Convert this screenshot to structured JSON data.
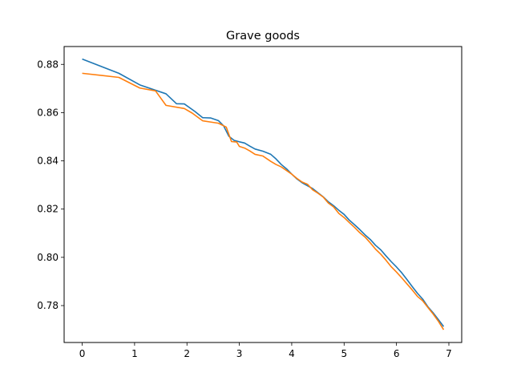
{
  "chart_data": {
    "type": "line",
    "title": "Grave goods",
    "xlabel": "",
    "ylabel": "",
    "xlim": [
      -0.345,
      7.245
    ],
    "ylim": [
      0.7647,
      0.8874
    ],
    "xticks": [
      0,
      1,
      2,
      3,
      4,
      5,
      6,
      7
    ],
    "yticks": [
      0.78,
      0.8,
      0.82,
      0.84,
      0.86,
      0.88
    ],
    "ytick_labels": [
      "0.78",
      "0.80",
      "0.82",
      "0.84",
      "0.86",
      "0.88"
    ],
    "grid": false,
    "legend": "none",
    "series": [
      {
        "color": "#1f77b4",
        "x": [
          0,
          0.7,
          1.1,
          1.6,
          1.8,
          1.95,
          2.15,
          2.3,
          2.45,
          2.6,
          2.7,
          2.8,
          2.9,
          3.0,
          3.1,
          3.2,
          3.3,
          3.45,
          3.6,
          3.7,
          3.8,
          3.9,
          4.0,
          4.1,
          4.2,
          4.3,
          4.4,
          4.5,
          4.6,
          4.7,
          4.8,
          4.9,
          5.0,
          5.1,
          5.2,
          5.3,
          5.4,
          5.5,
          5.6,
          5.7,
          5.8,
          5.9,
          6.0,
          6.1,
          6.2,
          6.3,
          6.4,
          6.5,
          6.6,
          6.7,
          6.8,
          6.9
        ],
        "y": [
          0.8822,
          0.8763,
          0.8715,
          0.8678,
          0.8637,
          0.8636,
          0.8605,
          0.8579,
          0.8578,
          0.8567,
          0.8545,
          0.8502,
          0.8485,
          0.8479,
          0.8474,
          0.8461,
          0.8449,
          0.844,
          0.8427,
          0.8408,
          0.8385,
          0.8367,
          0.8345,
          0.8325,
          0.8309,
          0.8297,
          0.8285,
          0.8268,
          0.8251,
          0.823,
          0.8214,
          0.8195,
          0.8178,
          0.8154,
          0.8135,
          0.8115,
          0.8093,
          0.8074,
          0.805,
          0.8031,
          0.8006,
          0.7982,
          0.796,
          0.7936,
          0.7908,
          0.7879,
          0.7851,
          0.7827,
          0.7795,
          0.777,
          0.7742,
          0.7713
        ]
      },
      {
        "color": "#ff7f0e",
        "x": [
          0,
          0.7,
          1.1,
          1.4,
          1.6,
          1.95,
          2.1,
          2.3,
          2.45,
          2.6,
          2.75,
          2.8,
          2.85,
          2.95,
          3.0,
          3.1,
          3.2,
          3.3,
          3.45,
          3.6,
          3.7,
          3.8,
          3.9,
          4.0,
          4.1,
          4.2,
          4.3,
          4.4,
          4.5,
          4.6,
          4.7,
          4.8,
          4.9,
          5.0,
          5.1,
          5.2,
          5.3,
          5.4,
          5.5,
          5.6,
          5.7,
          5.8,
          5.9,
          6.0,
          6.1,
          6.2,
          6.3,
          6.4,
          6.5,
          6.6,
          6.7,
          6.8,
          6.9
        ],
        "y": [
          0.8763,
          0.8746,
          0.8702,
          0.869,
          0.863,
          0.8617,
          0.8598,
          0.8566,
          0.8561,
          0.8556,
          0.854,
          0.851,
          0.848,
          0.8478,
          0.846,
          0.8453,
          0.8441,
          0.8427,
          0.842,
          0.8398,
          0.8385,
          0.8375,
          0.836,
          0.8345,
          0.8327,
          0.8312,
          0.8303,
          0.828,
          0.8266,
          0.825,
          0.8225,
          0.8209,
          0.8182,
          0.8165,
          0.8144,
          0.8124,
          0.8102,
          0.8084,
          0.806,
          0.8034,
          0.8013,
          0.7988,
          0.7961,
          0.7939,
          0.7915,
          0.789,
          0.7865,
          0.7838,
          0.782,
          0.7792,
          0.7765,
          0.7735,
          0.77
        ]
      }
    ]
  }
}
